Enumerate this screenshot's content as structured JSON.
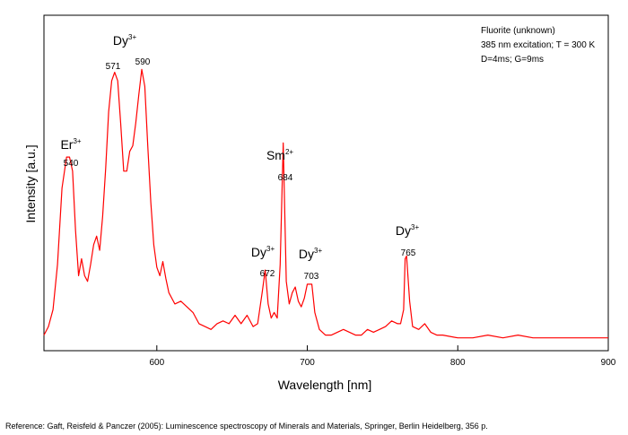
{
  "chart_data": {
    "type": "line",
    "xlabel": "Wavelength [nm]",
    "ylabel": "Intensity [a.u.]",
    "xlim": [
      525,
      900
    ],
    "ylim": [
      0,
      1
    ],
    "x_ticks": [
      600,
      700,
      800,
      900
    ],
    "x_tick_labels": [
      "600",
      "700",
      "800",
      "900"
    ],
    "line_color": "#ff0000",
    "grid": false,
    "info_box": {
      "line1": "Fluorite (unknown)",
      "line2": "385 nm excitation; T = 300 K",
      "line3": "D=4ms; G=9ms"
    },
    "annotations": [
      {
        "ion": "Er",
        "charge": "3+",
        "peak": "540",
        "x": 540
      },
      {
        "ion": "Dy",
        "charge": "3+",
        "peak": "571",
        "x": 571
      },
      {
        "peak": "590",
        "x": 590
      },
      {
        "ion": "Sm",
        "charge": "2+",
        "peak": "684",
        "x": 684
      },
      {
        "ion": "Dy",
        "charge": "3+",
        "peak": "672",
        "x": 672
      },
      {
        "ion": "Dy",
        "charge": "3+",
        "peak": "703",
        "x": 703
      },
      {
        "ion": "Dy",
        "charge": "3+",
        "peak": "765",
        "x": 765
      }
    ],
    "series": [
      {
        "x": [
          525,
          528,
          531,
          534,
          537,
          540,
          542,
          544,
          546,
          548,
          550,
          552,
          554,
          556,
          558,
          560,
          562,
          564,
          566,
          568,
          570,
          572,
          574,
          576,
          578,
          580,
          582,
          584,
          586,
          588,
          590,
          592,
          594,
          596,
          598,
          600,
          602,
          604,
          606,
          608,
          612,
          616,
          620,
          624,
          628,
          632,
          636,
          640,
          644,
          648,
          652,
          656,
          660,
          664,
          667,
          670,
          672,
          674,
          676,
          678,
          680,
          682,
          684,
          686,
          688,
          690,
          692,
          694,
          696,
          698,
          700,
          703,
          705,
          708,
          712,
          716,
          720,
          724,
          728,
          732,
          736,
          740,
          744,
          748,
          752,
          756,
          760,
          762,
          764,
          765,
          766,
          768,
          770,
          774,
          778,
          782,
          786,
          790,
          800,
          810,
          820,
          830,
          840,
          850,
          860,
          870,
          880,
          890,
          900
        ],
        "y": [
          0.03,
          0.06,
          0.12,
          0.28,
          0.55,
          0.66,
          0.66,
          0.61,
          0.4,
          0.24,
          0.3,
          0.24,
          0.22,
          0.28,
          0.35,
          0.38,
          0.33,
          0.45,
          0.62,
          0.82,
          0.93,
          0.96,
          0.93,
          0.78,
          0.61,
          0.61,
          0.68,
          0.7,
          0.78,
          0.88,
          0.97,
          0.91,
          0.7,
          0.5,
          0.35,
          0.27,
          0.24,
          0.29,
          0.23,
          0.18,
          0.14,
          0.15,
          0.13,
          0.11,
          0.07,
          0.06,
          0.05,
          0.07,
          0.08,
          0.07,
          0.1,
          0.07,
          0.1,
          0.06,
          0.07,
          0.18,
          0.26,
          0.14,
          0.09,
          0.11,
          0.09,
          0.28,
          0.71,
          0.22,
          0.14,
          0.18,
          0.2,
          0.15,
          0.13,
          0.16,
          0.21,
          0.21,
          0.11,
          0.05,
          0.03,
          0.03,
          0.04,
          0.05,
          0.04,
          0.03,
          0.03,
          0.05,
          0.04,
          0.05,
          0.06,
          0.08,
          0.07,
          0.07,
          0.12,
          0.3,
          0.31,
          0.15,
          0.06,
          0.05,
          0.07,
          0.04,
          0.03,
          0.03,
          0.02,
          0.02,
          0.03,
          0.02,
          0.03,
          0.02,
          0.02,
          0.02,
          0.02,
          0.02,
          0.02
        ]
      }
    ]
  },
  "reference": "Reference: Gaft, Reisfeld & Panczer (2005): Luminescence spectroscopy of Minerals and Materials, Springer, Berlin Heidelberg, 356 p."
}
